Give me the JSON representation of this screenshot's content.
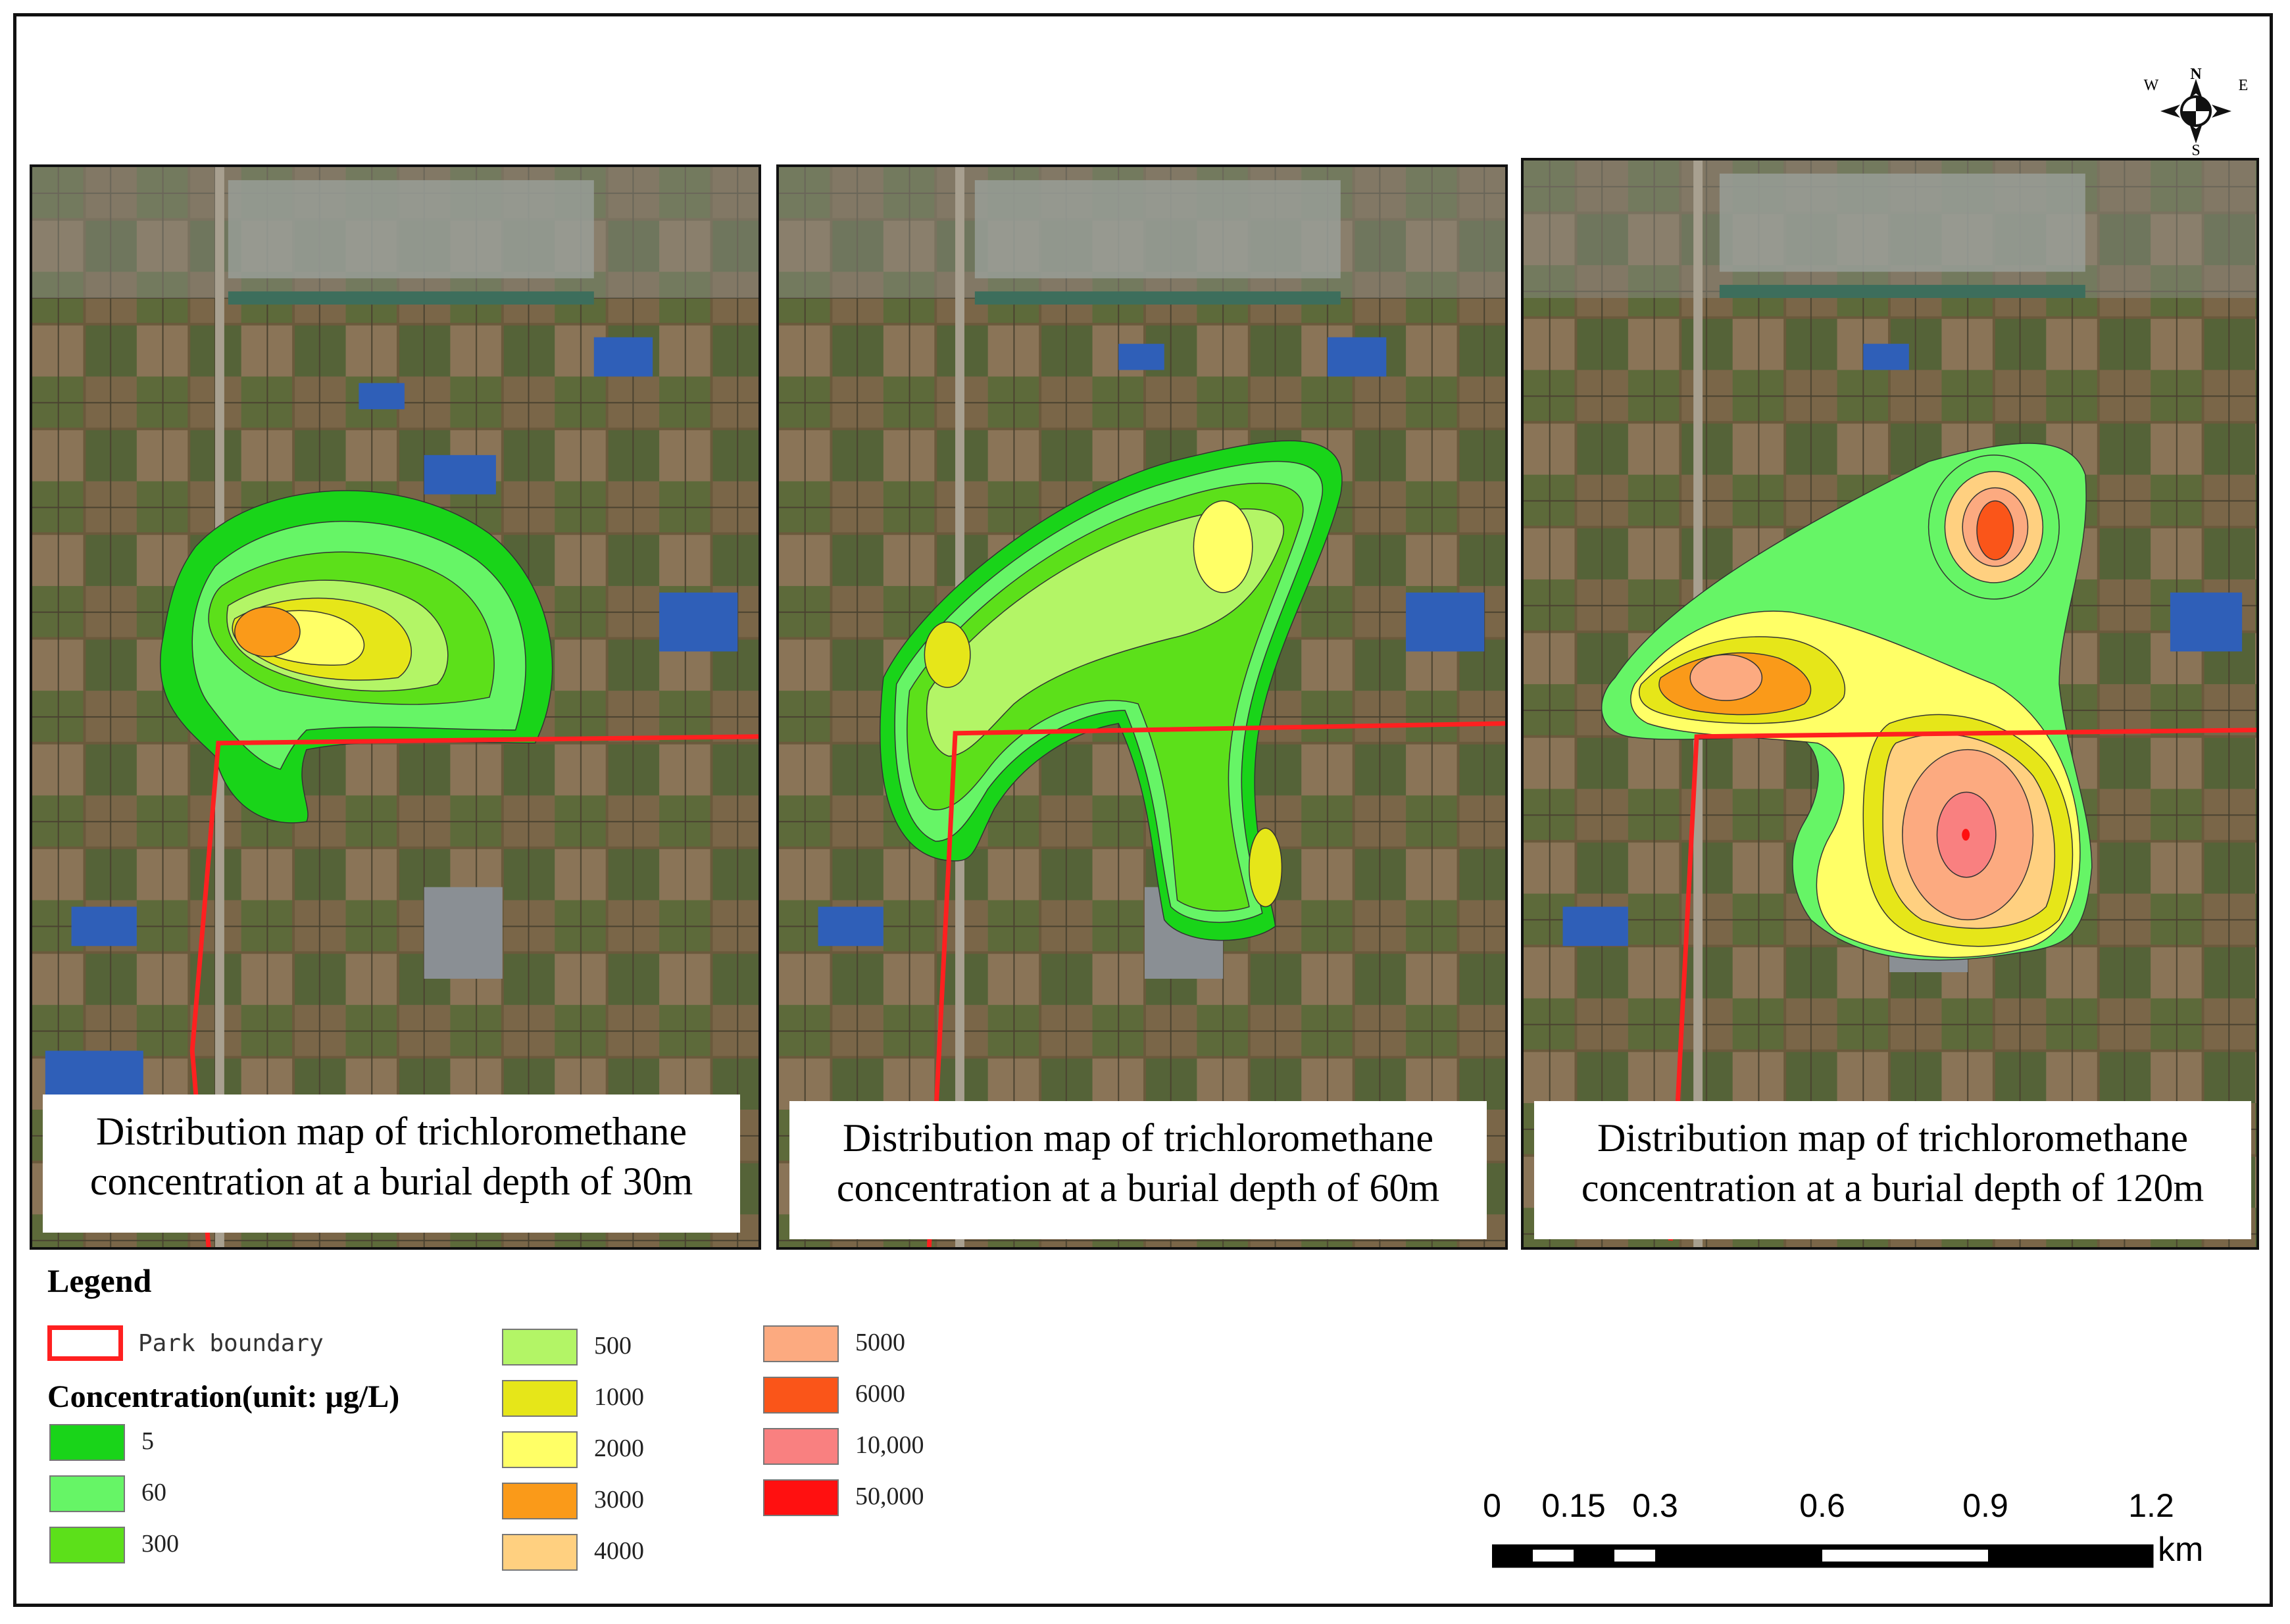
{
  "compass": {
    "n": "N",
    "s": "S",
    "e": "E",
    "w": "W"
  },
  "panels": [
    {
      "caption_line1": "Distribution map of trichloromethane",
      "caption_line2": "concentration at a burial depth of 30m"
    },
    {
      "caption_line1": "Distribution map of trichloromethane",
      "caption_line2": "concentration at a burial depth of 60m"
    },
    {
      "caption_line1": "Distribution map of trichloromethane",
      "caption_line2": "concentration at a burial depth of 120m"
    }
  ],
  "legend": {
    "title": "Legend",
    "boundary_label": "Park boundary",
    "boundary_color": "#ff2020",
    "concentration_title": "Concentration(unit: μg/L)",
    "classes": [
      {
        "label": "5",
        "color": "#19d419"
      },
      {
        "label": "60",
        "color": "#66f566"
      },
      {
        "label": "300",
        "color": "#5ce01a"
      },
      {
        "label": "500",
        "color": "#b3f566"
      },
      {
        "label": "1000",
        "color": "#e6e619"
      },
      {
        "label": "2000",
        "color": "#ffff66"
      },
      {
        "label": "3000",
        "color": "#fa9a19"
      },
      {
        "label": "4000",
        "color": "#ffd080"
      },
      {
        "label": "5000",
        "color": "#fcaa80"
      },
      {
        "label": "6000",
        "color": "#fa5519"
      },
      {
        "label": "10,000",
        "color": "#f98080"
      },
      {
        "label": "50,000",
        "color": "#ff1010"
      }
    ]
  },
  "scale": {
    "ticks": [
      "0",
      "0.15",
      "0.3",
      "0.6",
      "0.9",
      "1.2"
    ],
    "unit": "km"
  }
}
